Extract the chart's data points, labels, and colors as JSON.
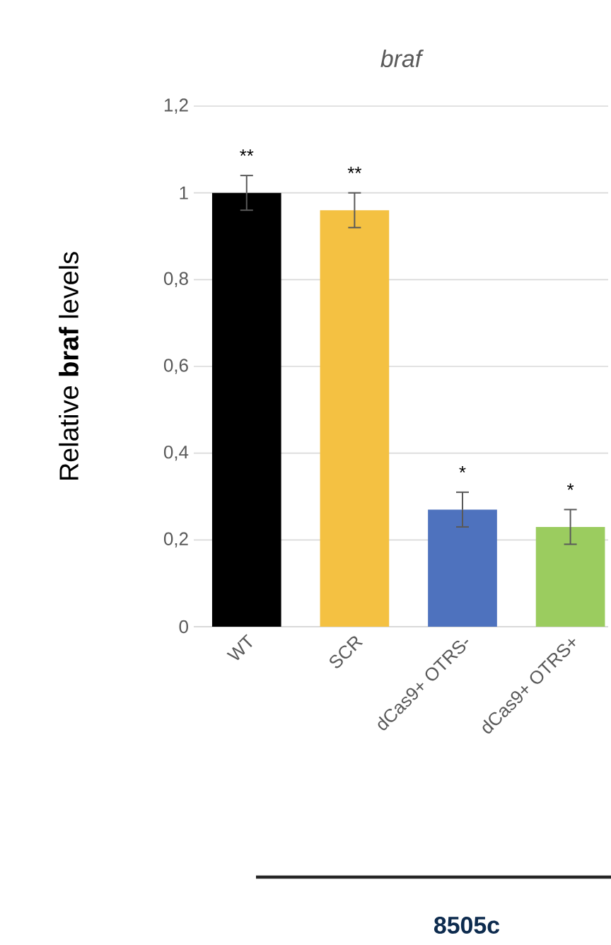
{
  "chart_data": {
    "type": "bar",
    "title": "braf",
    "ylabel": "Relative **braf** levels",
    "categories": [
      "WT",
      "SCR",
      "dCas9+ OTRS-",
      "dCas9+ OTRS+"
    ],
    "values": [
      1.0,
      0.96,
      0.27,
      0.23
    ],
    "errors": [
      0.04,
      0.04,
      0.04,
      0.04
    ],
    "colors": [
      "#000000",
      "#f4c142",
      "#4e72be",
      "#9bcc5f"
    ],
    "ylim": [
      0,
      1.2
    ],
    "yticks": [
      0,
      {
        "value": 0.2,
        "label": "0,2"
      },
      {
        "value": 0.4,
        "label": "0,4"
      },
      {
        "value": 0.6,
        "label": "0,6"
      },
      {
        "value": 0.8,
        "label": "0,8"
      },
      1,
      {
        "value": 1.2,
        "label": "1,2"
      }
    ],
    "grid": "y",
    "annotations": [
      "**",
      "**",
      "*",
      "*",
      "8505c"
    ]
  }
}
